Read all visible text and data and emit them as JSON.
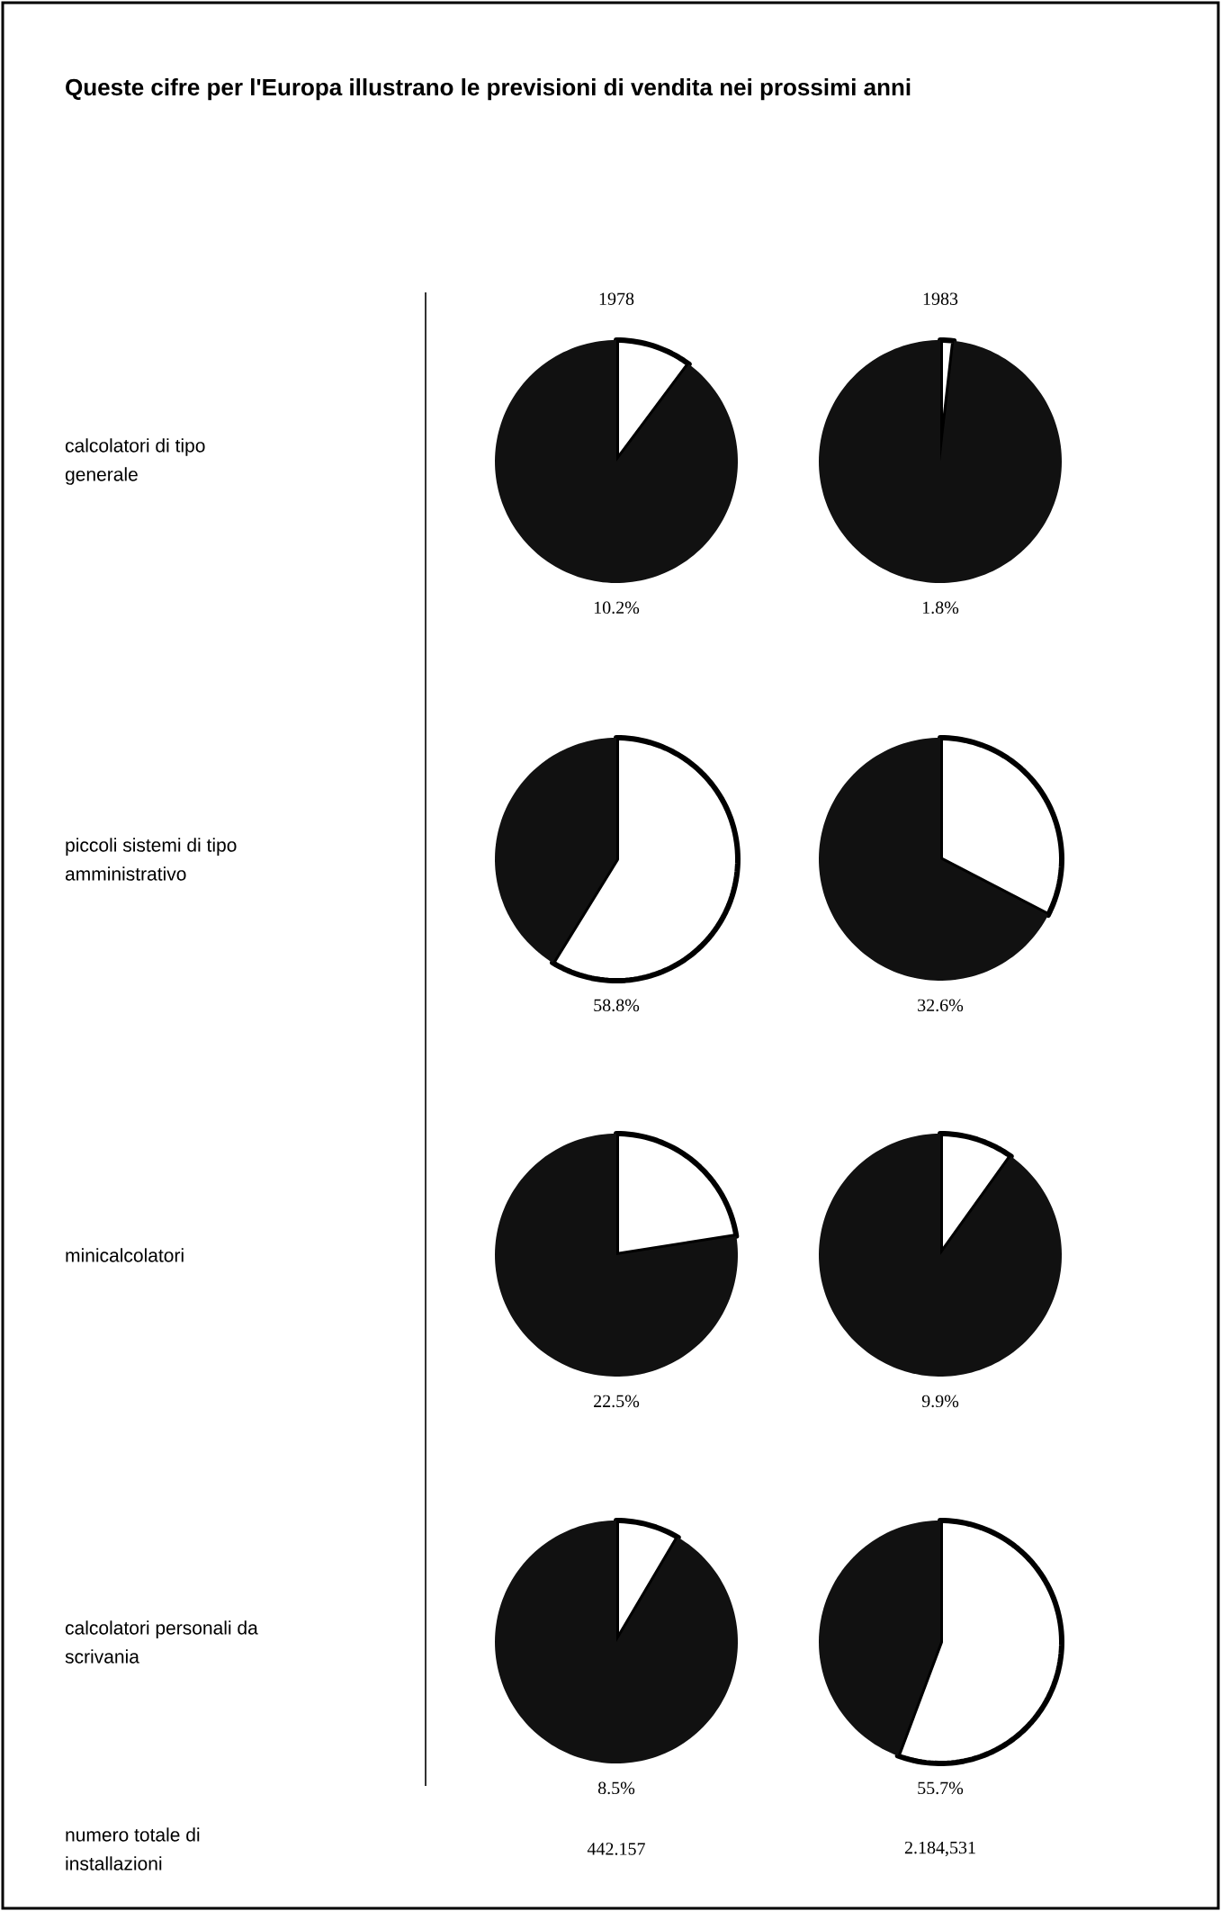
{
  "chart_data": [
    {
      "type": "other",
      "title": "Queste cifre per l'Europa illustrano le previsioni di vendita nei prossimi anni"
    },
    {
      "type": "pie",
      "title": "1978",
      "ylabel": "calcolatori di tipo generale",
      "categories": [
        null,
        null
      ],
      "values": [
        10.2,
        89.8
      ],
      "colors": [
        "#ffffff",
        "#111111"
      ],
      "annotations": [
        "10.2%"
      ]
    },
    {
      "type": "pie",
      "title": "1983",
      "categories": [
        null,
        null
      ],
      "values": [
        1.8,
        98.2
      ],
      "colors": [
        "#ffffff",
        "#111111"
      ],
      "annotations": [
        "1.8%"
      ]
    },
    {
      "type": "pie",
      "ylabel": "piccoli sistemi di tipo amministrativo",
      "categories": [
        null,
        null
      ],
      "values": [
        58.8,
        41.2
      ],
      "colors": [
        "#ffffff",
        "#111111"
      ],
      "annotations": [
        "58.8%"
      ]
    },
    {
      "type": "pie",
      "categories": [
        null,
        null
      ],
      "values": [
        32.6,
        67.4
      ],
      "colors": [
        "#ffffff",
        "#111111"
      ],
      "annotations": [
        "32.6%"
      ]
    },
    {
      "type": "pie",
      "ylabel": "minicalcolatori",
      "categories": [
        null,
        null
      ],
      "values": [
        22.5,
        77.5
      ],
      "colors": [
        "#ffffff",
        "#111111"
      ],
      "annotations": [
        "22.5%"
      ]
    },
    {
      "type": "pie",
      "categories": [
        null,
        null
      ],
      "values": [
        9.9,
        90.1
      ],
      "colors": [
        "#ffffff",
        "#111111"
      ],
      "annotations": [
        "9.9%"
      ]
    },
    {
      "type": "pie",
      "ylabel": "calcolatori personali da scrivania",
      "categories": [
        null,
        null
      ],
      "values": [
        8.5,
        91.5
      ],
      "colors": [
        "#ffffff",
        "#111111"
      ],
      "annotations": [
        "8.5%"
      ]
    },
    {
      "type": "pie",
      "categories": [
        null,
        null
      ],
      "values": [
        55.7,
        44.3
      ],
      "colors": [
        "#ffffff",
        "#111111"
      ],
      "annotations": [
        "55.7%"
      ]
    },
    {
      "type": "other",
      "annotations": [
        "numero totale di installazioni",
        "442.157",
        "2.184,531"
      ]
    }
  ]
}
